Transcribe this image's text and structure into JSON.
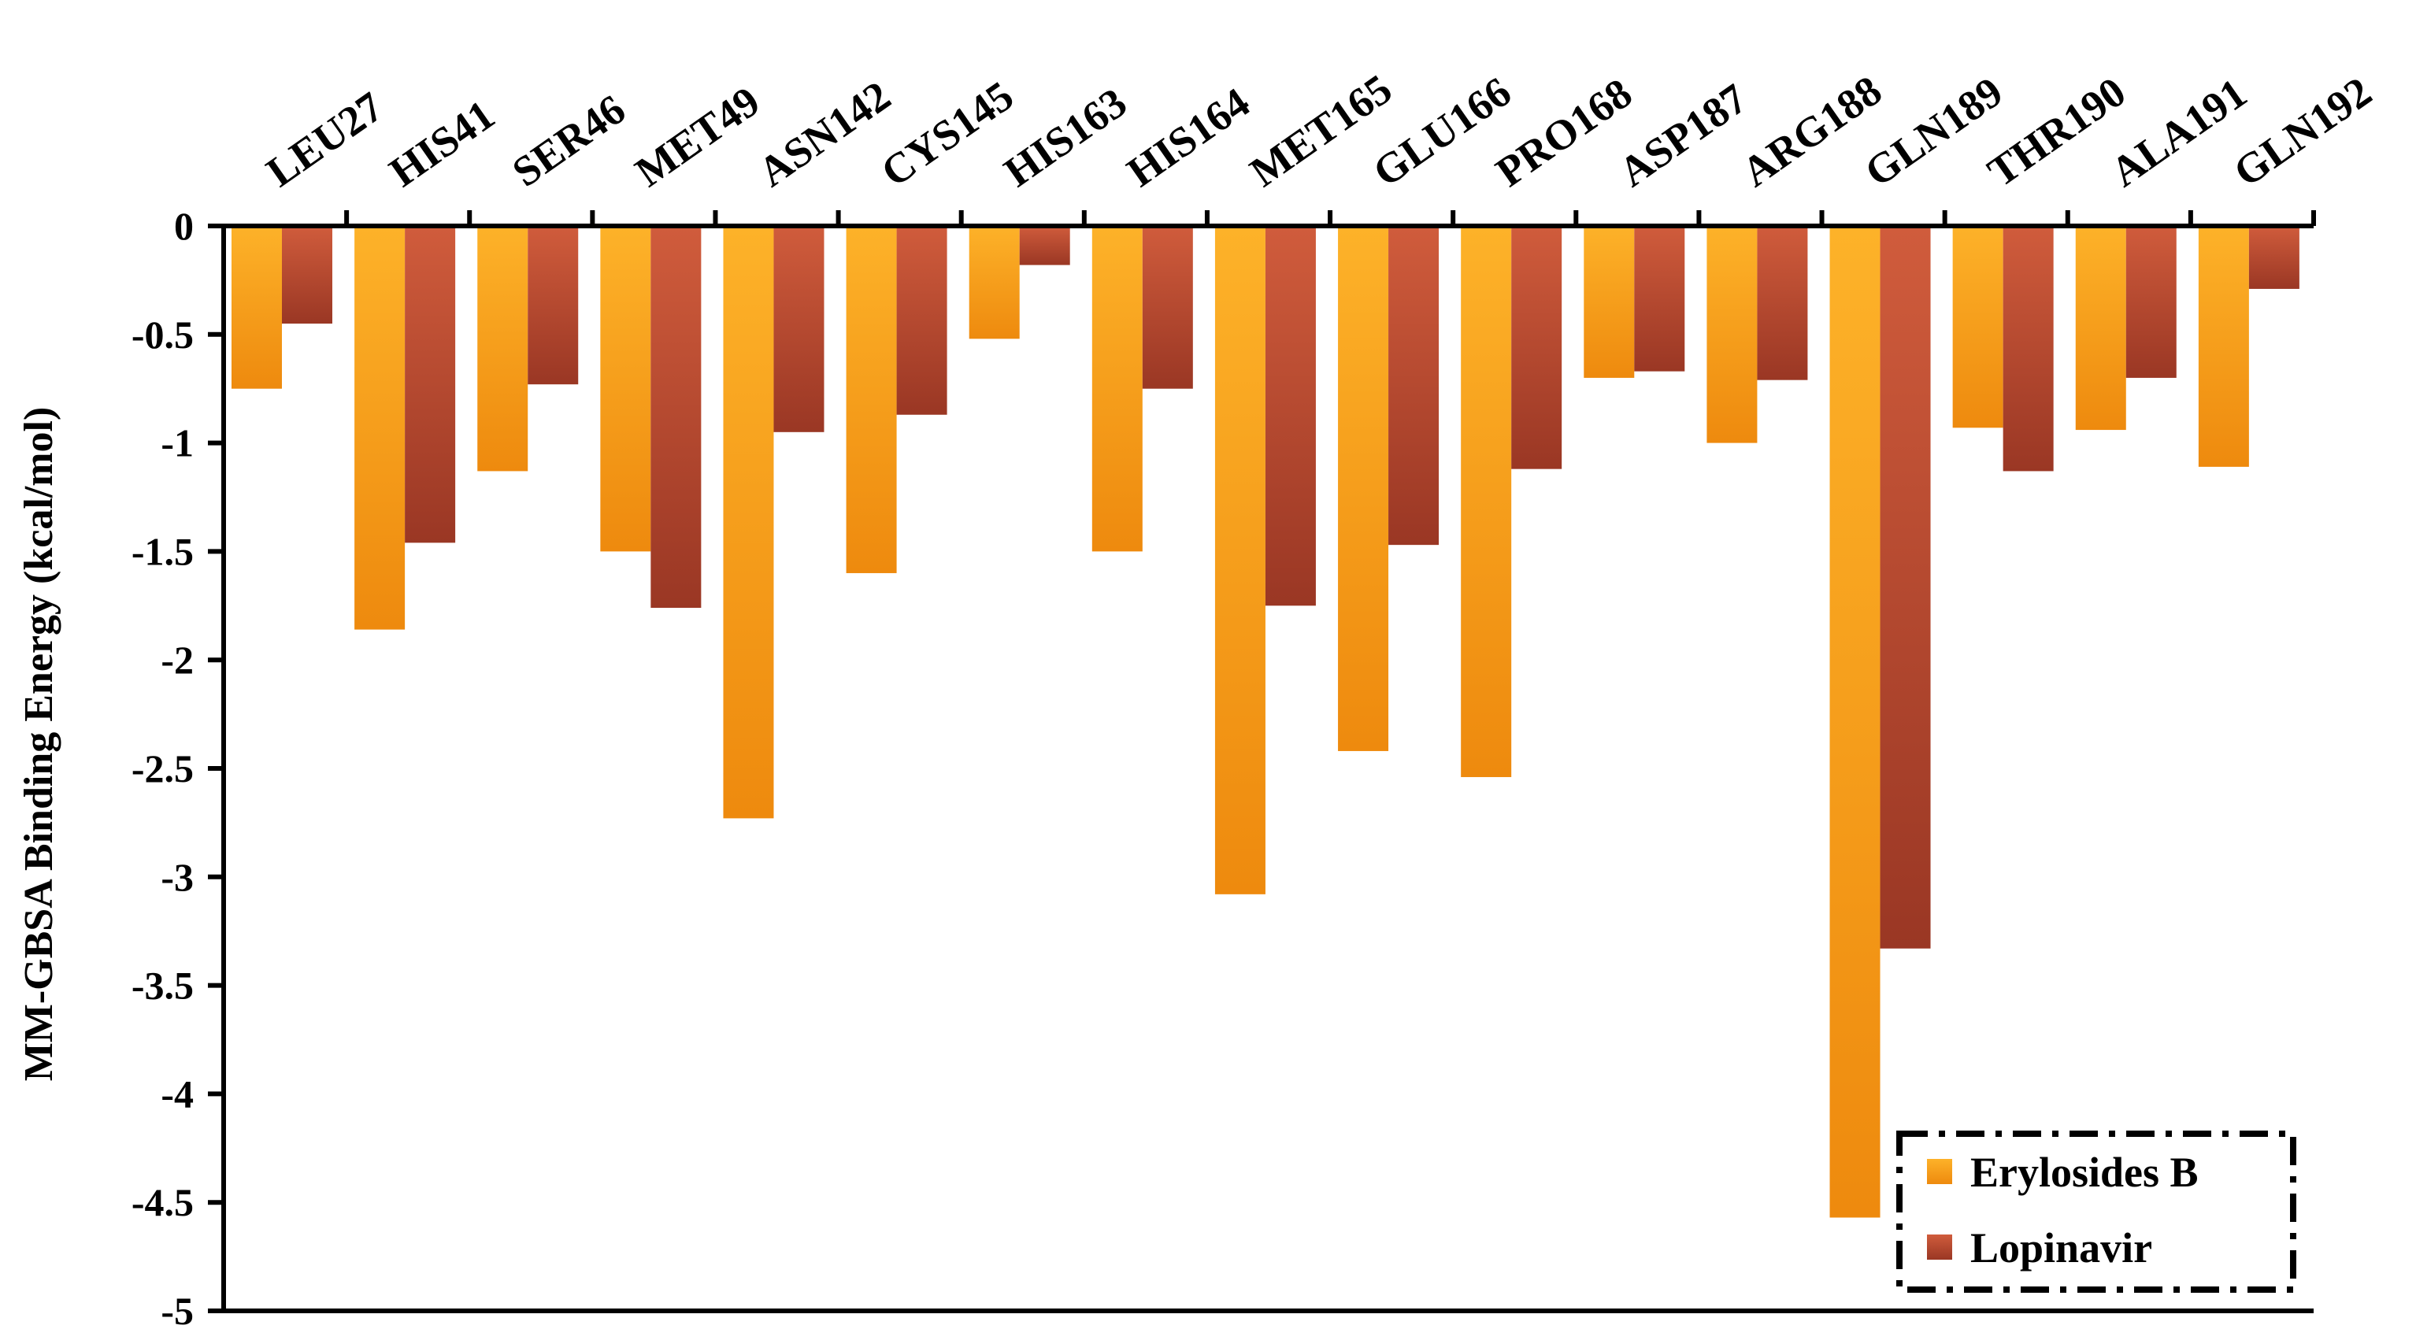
{
  "chart_data": {
    "type": "bar",
    "title": "",
    "xlabel": "",
    "ylabel": "MM-GBSA Binding Energy (kcal/mol)",
    "ylim": [
      -5,
      0
    ],
    "yticks": [
      0,
      -0.5,
      -1,
      -1.5,
      -2,
      -2.5,
      -3,
      -3.5,
      -4,
      -4.5,
      -5
    ],
    "ytick_labels": [
      "0",
      "-0.5",
      "-1",
      "-1.5",
      "-2",
      "-2.5",
      "-3",
      "-3.5",
      "-4",
      "-4.5",
      "-5"
    ],
    "x_axis_position": "top",
    "grid": false,
    "legend_position": "bottom-right",
    "categories": [
      "LEU27",
      "HIS41",
      "SER46",
      "MET49",
      "ASN142",
      "CYS145",
      "HIS163",
      "HIS164",
      "MET165",
      "GLU166",
      "PRO168",
      "ASP187",
      "ARG188",
      "GLN189",
      "THR190",
      "ALA191",
      "GLN192"
    ],
    "series": [
      {
        "name": "Erylosides B",
        "color": "#F7A11A",
        "values": [
          -0.75,
          -1.86,
          -1.13,
          -1.5,
          -2.73,
          -1.6,
          -0.52,
          -1.5,
          -3.08,
          -2.42,
          -2.54,
          -0.7,
          -1.0,
          -4.57,
          -0.93,
          -0.94,
          -1.11
        ]
      },
      {
        "name": "Lopinavir",
        "color": "#B5452E",
        "values": [
          -0.45,
          -1.46,
          -0.73,
          -1.76,
          -0.95,
          -0.87,
          -0.18,
          -0.75,
          -1.75,
          -1.47,
          -1.12,
          -0.67,
          -0.71,
          -3.33,
          -1.13,
          -0.7,
          -0.29
        ]
      }
    ]
  }
}
